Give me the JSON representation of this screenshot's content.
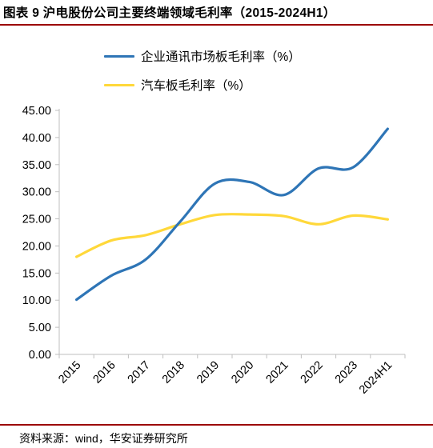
{
  "header": {
    "title": "图表 9 沪电股份公司主要终端领域毛利率（2015-2024H1）"
  },
  "footer": {
    "source": "资料来源：wind，华安证券研究所"
  },
  "chart_data": {
    "type": "line",
    "title": "",
    "xlabel": "",
    "ylabel": "",
    "categories": [
      "2015",
      "2016",
      "2017",
      "2018",
      "2019",
      "2020",
      "2021",
      "2022",
      "2023",
      "2024H1"
    ],
    "y_ticks": [
      "0.00",
      "5.00",
      "10.00",
      "15.00",
      "20.00",
      "25.00",
      "30.00",
      "35.00",
      "40.00",
      "45.00"
    ],
    "ylim": [
      0,
      45
    ],
    "grid": false,
    "legend_position": "top",
    "series": [
      {
        "name": "企业通讯市场板毛利率（%）",
        "color": "#2e75b6",
        "values": [
          10.1,
          14.5,
          17.5,
          24.5,
          31.5,
          31.8,
          29.4,
          34.3,
          34.5,
          41.6
        ]
      },
      {
        "name": "汽车板毛利率（%）",
        "color": "#ffd83a",
        "values": [
          18.0,
          21.0,
          22.0,
          24.0,
          25.7,
          25.8,
          25.5,
          24.0,
          25.6,
          24.9
        ]
      }
    ]
  }
}
